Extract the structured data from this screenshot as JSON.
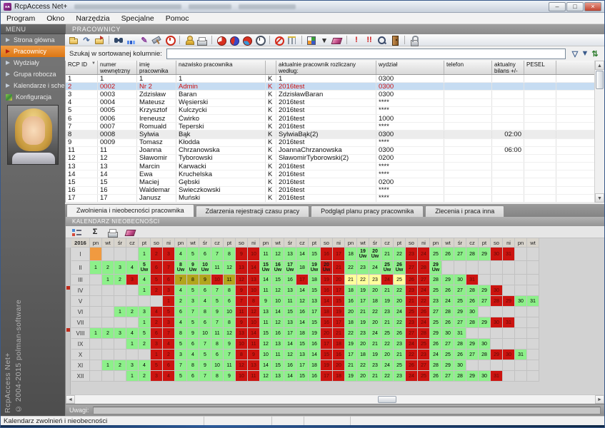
{
  "window": {
    "title": "RcpAccess Net+",
    "buttons": [
      {
        "name": "minimize-button",
        "glyph": "–"
      },
      {
        "name": "maximize-button",
        "glyph": "□"
      },
      {
        "name": "close-button",
        "glyph": "×",
        "close": true
      }
    ]
  },
  "menubar": {
    "items": [
      "Program",
      "Okno",
      "Narzędzia",
      "Specjalne",
      "Pomoc"
    ]
  },
  "sidebar": {
    "header": "MENU",
    "items": [
      {
        "label": "Strona główna",
        "active": false
      },
      {
        "label": "Pracownicy",
        "active": true
      },
      {
        "label": "Wydziały",
        "active": false
      },
      {
        "label": "Grupa robocza",
        "active": false
      },
      {
        "label": "Kalendarze i schematy",
        "active": false
      },
      {
        "label": "Konfiguracja",
        "active": false,
        "icon": "config"
      }
    ],
    "vertical_line1": "RcpAccess Net+",
    "vertical_line2": "© 2004-2015 polman-software"
  },
  "main": {
    "header": "PRACOWNICY",
    "toolbar": {
      "icons": [
        {
          "name": "open-folder-icon",
          "css": "folder"
        },
        {
          "name": "redo-icon",
          "glyph": "↷",
          "color": "#4a6a9a"
        },
        {
          "name": "import-folder-icon",
          "css": "folder2"
        },
        {
          "type": "sep"
        },
        {
          "name": "find-employee-icon",
          "css": "bino"
        },
        {
          "name": "statistics-icon",
          "css": "chart"
        },
        {
          "name": "edit-icon",
          "glyph": "✎",
          "color": "#8a3a9a"
        },
        {
          "name": "tools-icon",
          "css": "tools"
        },
        {
          "name": "time-limit-icon",
          "css": "clockred"
        },
        {
          "type": "sep"
        },
        {
          "name": "employee-icon",
          "css": "user"
        },
        {
          "name": "print-icon",
          "css": "printer"
        },
        {
          "type": "sep"
        },
        {
          "name": "report-pie-red-icon",
          "css": "pie1"
        },
        {
          "name": "report-pie-blue-icon",
          "css": "pie2"
        },
        {
          "name": "report-pie-mixed-icon",
          "css": "pie3"
        },
        {
          "name": "worktime-clock-icon",
          "css": "clock"
        },
        {
          "type": "sep"
        },
        {
          "name": "block-icon",
          "css": "ban"
        },
        {
          "name": "gate-icon",
          "css": "gate"
        },
        {
          "type": "sep"
        },
        {
          "name": "color-grid-icon",
          "css": "grid"
        },
        {
          "name": "dropdown-arrow-icon",
          "glyph": "▾",
          "color": "#333333"
        },
        {
          "name": "eraser-icon",
          "css": "eraser"
        },
        {
          "type": "sep"
        },
        {
          "name": "alert-icon",
          "glyph": "!",
          "color": "#cc1111"
        },
        {
          "name": "alert-double-icon",
          "glyph": "!!",
          "color": "#cc1111"
        },
        {
          "name": "zoom-details-icon",
          "css": "zoom"
        },
        {
          "name": "exit-door-icon",
          "css": "door"
        },
        {
          "type": "sep"
        },
        {
          "name": "lock-icon",
          "css": "lock"
        }
      ]
    },
    "search": {
      "label": "Szukaj w sortowanej kolumnie:",
      "value": "",
      "icons": [
        {
          "name": "filter-icon",
          "glyph": "▽",
          "color": "#3a5a8a"
        },
        {
          "name": "filter-edit-icon",
          "glyph": "▼",
          "color": "#3a5a8a"
        },
        {
          "name": "sort-icon",
          "glyph": "⇅",
          "color": "#2a7a2a"
        }
      ]
    },
    "table": {
      "headers": [
        "RCP ID",
        "numer wewnętrzny",
        "imię pracownika",
        "nazwisko pracownika",
        "",
        "aktualnie pracownik rozliczany według:",
        "wydział",
        "telefon",
        "aktualny bilans +/-",
        "PESEL"
      ],
      "rows": [
        {
          "cells": [
            "1",
            "1",
            "1",
            "1",
            "K",
            "1",
            "0300",
            "",
            "",
            ""
          ],
          "selected": false,
          "shaded": false
        },
        {
          "cells": [
            "2",
            "0002",
            "Nr 2",
            "Admin",
            "K",
            "2016test",
            "0300",
            "",
            "",
            ""
          ],
          "selected": true,
          "shaded": false
        },
        {
          "cells": [
            "3",
            "0003",
            "Zdzisław",
            "Baran",
            "K",
            "ZdzisławBaran",
            "0300",
            "",
            "",
            ""
          ],
          "selected": false,
          "shaded": false
        },
        {
          "cells": [
            "4",
            "0004",
            "Mateusz",
            "Węsierski",
            "K",
            "2016test",
            "****",
            "",
            "",
            ""
          ],
          "selected": false,
          "shaded": false
        },
        {
          "cells": [
            "5",
            "0005",
            "Krzysztof",
            "Kulczycki",
            "K",
            "2016test",
            "****",
            "",
            "",
            ""
          ],
          "selected": false,
          "shaded": false
        },
        {
          "cells": [
            "6",
            "0006",
            "Ireneusz",
            "Ćwirko",
            "K",
            "2016test",
            "1000",
            "",
            "",
            ""
          ],
          "selected": false,
          "shaded": false
        },
        {
          "cells": [
            "7",
            "0007",
            "Romuald",
            "Teperski",
            "K",
            "2016test",
            "****",
            "",
            "",
            ""
          ],
          "selected": false,
          "shaded": false
        },
        {
          "cells": [
            "8",
            "0008",
            "Sylwia",
            "Bąk",
            "K",
            "SylwiaBąk(2)",
            "0300",
            "",
            "02:00",
            ""
          ],
          "selected": false,
          "shaded": true
        },
        {
          "cells": [
            "9",
            "0009",
            "Tomasz",
            "Kłodda",
            "K",
            "2016test",
            "****",
            "",
            "",
            ""
          ],
          "selected": false,
          "shaded": false
        },
        {
          "cells": [
            "11",
            "11",
            "Joanna",
            "Chrzanowska",
            "K",
            "JoannaChrzanowska",
            "0300",
            "",
            "06:00",
            ""
          ],
          "selected": false,
          "shaded": false
        },
        {
          "cells": [
            "12",
            "12",
            "Sławomir",
            "Tyborowski",
            "K",
            "SławomirTyborowski(2)",
            "0200",
            "",
            "",
            ""
          ],
          "selected": false,
          "shaded": false
        },
        {
          "cells": [
            "13",
            "13",
            "Marcin",
            "Karwacki",
            "K",
            "2016test",
            "****",
            "",
            "",
            ""
          ],
          "selected": false,
          "shaded": false
        },
        {
          "cells": [
            "14",
            "14",
            "Ewa",
            "Kruchelska",
            "K",
            "2016test",
            "****",
            "",
            "",
            ""
          ],
          "selected": false,
          "shaded": false
        },
        {
          "cells": [
            "15",
            "15",
            "Maciej",
            "Gębski",
            "K",
            "2016test",
            "0200",
            "",
            "",
            ""
          ],
          "selected": false,
          "shaded": false
        },
        {
          "cells": [
            "16",
            "16",
            "Waldemar",
            "Świeczkowski",
            "K",
            "2016test",
            "****",
            "",
            "",
            ""
          ],
          "selected": false,
          "shaded": false
        },
        {
          "cells": [
            "17",
            "17",
            "Janusz",
            "Muński",
            "K",
            "2016test",
            "****",
            "",
            "",
            ""
          ],
          "selected": false,
          "shaded": false
        }
      ]
    },
    "tabs": [
      {
        "label": "Zwolnienia i nieobecności pracownika",
        "active": true
      },
      {
        "label": "Zdarzenia rejestracji czasu pracy",
        "active": false
      },
      {
        "label": "Podgląd planu pracy pracownika",
        "active": false
      },
      {
        "label": "Zlecenia i praca inna",
        "active": false
      }
    ],
    "calendar": {
      "panel_title": "KALENDARZ NIEOBECNOŚCI",
      "toolbar_icons": [
        {
          "name": "legend-icon",
          "css": "legend"
        },
        {
          "name": "sum-icon",
          "glyph": "Σ",
          "color": "#222222"
        },
        {
          "name": "print-calendar-icon",
          "css": "printer"
        },
        {
          "name": "erase-calendar-icon",
          "css": "eraser"
        }
      ],
      "year": "2016",
      "weekdays": [
        "pn",
        "wt",
        "śr",
        "cz",
        "pt",
        "so",
        "ni"
      ],
      "total_cols": 37,
      "uw_label": "Uw",
      "colors": {
        "work_day": "#8df08a",
        "holiday_weekend": "#cc1410",
        "absence_khaki": "#b3a51d",
        "absence_yellow": "#ffff9c",
        "selected_cell": "#f09a40",
        "empty_cell": "#d6d6d6"
      },
      "months": [
        {
          "label": "I",
          "start": 4,
          "days": 31,
          "uw": [
            19,
            20
          ],
          "orange_cols": [
            0
          ]
        },
        {
          "label": "II",
          "start": 0,
          "days": 29,
          "uw": [
            5,
            8,
            9,
            10,
            15,
            16,
            17,
            19,
            25,
            26,
            29
          ],
          "uw_red": [
            20
          ]
        },
        {
          "label": "III",
          "start": 1,
          "days": 31,
          "khaki": [
            7,
            8,
            9,
            11
          ],
          "yellow": [
            21,
            22,
            23,
            25
          ],
          "red": [
            3,
            10,
            17,
            24,
            31
          ]
        },
        {
          "label": "IV",
          "start": 4,
          "days": 30
        },
        {
          "label": "V",
          "start": 6,
          "days": 31
        },
        {
          "label": "VI",
          "start": 2,
          "days": 30
        },
        {
          "label": "VII",
          "start": 4,
          "days": 31
        },
        {
          "label": "VIII",
          "start": 0,
          "days": 31
        },
        {
          "label": "IX",
          "start": 3,
          "days": 30
        },
        {
          "label": "X",
          "start": 5,
          "days": 31
        },
        {
          "label": "XI",
          "start": 1,
          "days": 30
        },
        {
          "label": "XII",
          "start": 3,
          "days": 31
        }
      ]
    },
    "uwagi_label": "Uwagi:",
    "uwagi_value": ""
  },
  "statusbar": {
    "text": "Kalendarz zwolnień i nieobecności"
  }
}
